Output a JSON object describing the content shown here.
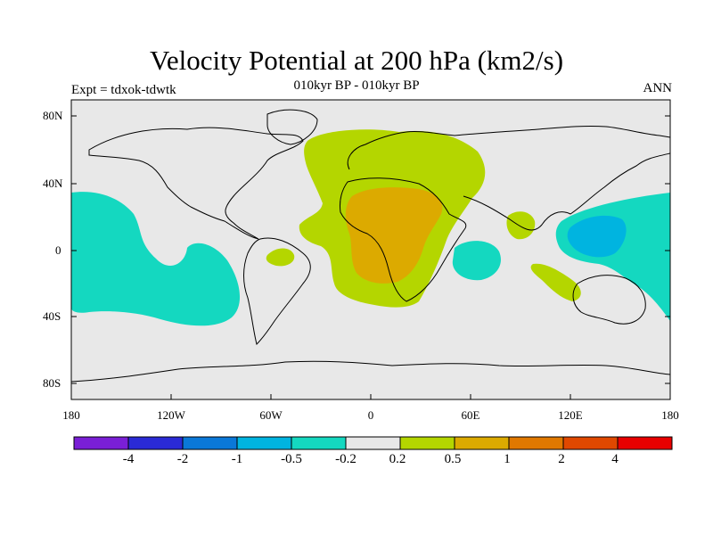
{
  "title": "Velocity Potential at 200 hPa (km2/s)",
  "subtitle": "010kyr BP - 010kyr BP",
  "experiment": "Expt = tdxok-tdwtk",
  "season": "ANN",
  "lat_ticks": [
    "80N",
    "40N",
    "0",
    "40S",
    "80S"
  ],
  "lon_ticks": [
    "180",
    "120W",
    "60W",
    "0",
    "60E",
    "120E",
    "180"
  ],
  "colorbar": {
    "colors": [
      "#7a1fd6",
      "#2a2ad6",
      "#0a78d8",
      "#00b4e0",
      "#14d8c0",
      "#e8e8e8",
      "#b4d600",
      "#dcaa00",
      "#e07800",
      "#e04800",
      "#e80000"
    ],
    "labels": [
      "-4",
      "-2",
      "-1",
      "-0.5",
      "-0.2",
      "0.2",
      "0.5",
      "1",
      "2",
      "4"
    ]
  },
  "chart_data": {
    "type": "map",
    "projection": "equirectangular",
    "x_range": [
      -180,
      180
    ],
    "y_range": [
      -90,
      90
    ],
    "background_color": "#e8e8e8",
    "regions": [
      {
        "level": "-0.2 to -0.5",
        "color": "#14d8c0",
        "area": "central/eastern Pacific"
      },
      {
        "level": "-0.2 to -0.5",
        "color": "#14d8c0",
        "area": "western Indian Ocean"
      },
      {
        "level": "-0.2 to -0.5",
        "color": "#14d8c0",
        "area": "western Pacific / Maritime Continent"
      },
      {
        "level": "-0.5 to -1",
        "color": "#00b4e0",
        "area": "Philippines / New Guinea"
      },
      {
        "level": "0.2 to 0.5",
        "color": "#b4d600",
        "area": "North Atlantic, Europe, Africa"
      },
      {
        "level": "0.5 to 1",
        "color": "#dcaa00",
        "area": "North and Central Africa"
      },
      {
        "level": "0.2 to 0.5",
        "color": "#b4d600",
        "area": "Bay of Bengal"
      },
      {
        "level": "0.2 to 0.5",
        "color": "#b4d600",
        "area": "eastern Brazil"
      },
      {
        "level": "0.2 to 0.5",
        "color": "#b4d600",
        "area": "northwest Australia"
      }
    ]
  }
}
